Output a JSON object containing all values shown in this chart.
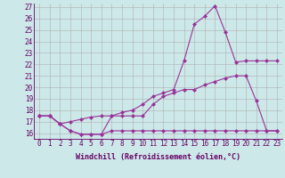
{
  "xlabel": "Windchill (Refroidissement éolien,°C)",
  "background_color": "#cce8e8",
  "grid_color": "#b0b0b0",
  "line_color": "#993399",
  "x": [
    0,
    1,
    2,
    3,
    4,
    5,
    6,
    7,
    8,
    9,
    10,
    11,
    12,
    13,
    14,
    15,
    16,
    17,
    18,
    19,
    20,
    21,
    22,
    23
  ],
  "series1": [
    17.5,
    17.5,
    16.8,
    16.2,
    15.9,
    15.9,
    15.9,
    16.2,
    16.2,
    16.2,
    16.2,
    16.2,
    16.2,
    16.2,
    16.2,
    16.2,
    16.2,
    16.2,
    16.2,
    16.2,
    16.2,
    16.2,
    16.2,
    16.2
  ],
  "series2": [
    17.5,
    17.5,
    16.8,
    17.0,
    17.2,
    17.4,
    17.5,
    17.5,
    17.8,
    18.0,
    18.5,
    19.2,
    19.5,
    19.8,
    22.3,
    25.5,
    26.2,
    27.1,
    24.8,
    22.2,
    22.3,
    22.3,
    22.3,
    22.3
  ],
  "series3": [
    17.5,
    17.5,
    16.8,
    16.2,
    15.9,
    15.9,
    15.9,
    17.5,
    17.5,
    17.5,
    17.5,
    18.5,
    19.2,
    19.5,
    19.8,
    19.8,
    20.2,
    20.5,
    20.8,
    21.0,
    21.0,
    18.8,
    16.2,
    16.2
  ],
  "ylim_min": 15.5,
  "ylim_max": 27.3,
  "yticks": [
    16,
    17,
    18,
    19,
    20,
    21,
    22,
    23,
    24,
    25,
    26,
    27
  ],
  "xlim_min": -0.5,
  "xlim_max": 23.5,
  "marker": "D",
  "marker_size": 2.0,
  "linewidth": 0.8,
  "font_color": "#660066",
  "xlabel_fontsize": 6.0,
  "tick_fontsize": 5.5
}
